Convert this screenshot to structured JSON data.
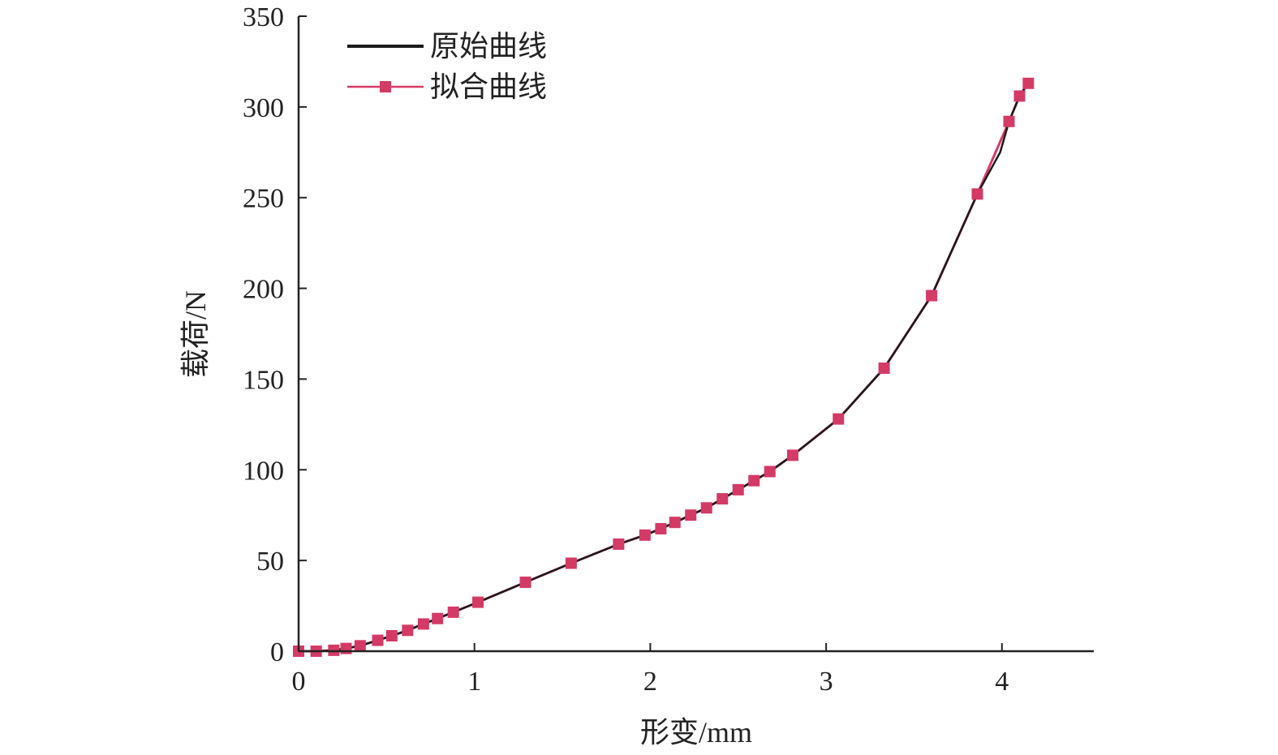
{
  "chart_data": {
    "type": "line",
    "title": "",
    "xlabel": "形变/mm",
    "ylabel": "载荷/N",
    "xlim": [
      0,
      4.5
    ],
    "ylim": [
      0,
      350
    ],
    "xticks": [
      0,
      1,
      2,
      3,
      4
    ],
    "yticks": [
      0,
      50,
      100,
      150,
      200,
      250,
      300,
      350
    ],
    "grid": false,
    "legend_position": "top-left",
    "series": [
      {
        "name": "原始曲线",
        "color": "#1a1a1a",
        "marker": "none",
        "x": [
          0.0,
          0.1,
          0.2,
          0.27,
          0.35,
          0.45,
          0.53,
          0.62,
          0.71,
          0.79,
          0.88,
          1.02,
          1.29,
          1.55,
          1.82,
          1.97,
          2.06,
          2.14,
          2.23,
          2.32,
          2.41,
          2.5,
          2.59,
          2.68,
          2.81,
          3.07,
          3.33,
          3.6,
          3.86,
          3.99,
          4.04,
          4.1,
          4.14,
          4.15
        ],
        "y": [
          0,
          0,
          0.5,
          1.5,
          3,
          6,
          8.5,
          11.5,
          15,
          18,
          21.5,
          27,
          38,
          48.5,
          59,
          64,
          67.5,
          71,
          75,
          79,
          84,
          89,
          94,
          99,
          108,
          128,
          156,
          196,
          252,
          275,
          292,
          306,
          312,
          313
        ]
      },
      {
        "name": "拟合曲线",
        "color": "#d43a66",
        "marker": "square",
        "x": [
          0.0,
          0.1,
          0.2,
          0.27,
          0.35,
          0.45,
          0.53,
          0.62,
          0.71,
          0.79,
          0.88,
          1.02,
          1.29,
          1.55,
          1.82,
          1.97,
          2.06,
          2.14,
          2.23,
          2.32,
          2.41,
          2.5,
          2.59,
          2.68,
          2.81,
          3.07,
          3.33,
          3.6,
          3.86,
          4.04,
          4.1,
          4.15
        ],
        "y": [
          0,
          0,
          0.5,
          1.5,
          3,
          6,
          8.5,
          11.5,
          15,
          18,
          21.5,
          27,
          38,
          48.5,
          59,
          64,
          67.5,
          71,
          75,
          79,
          84,
          89,
          94,
          99,
          108,
          128,
          156,
          196,
          252,
          292,
          306,
          313
        ]
      }
    ]
  }
}
